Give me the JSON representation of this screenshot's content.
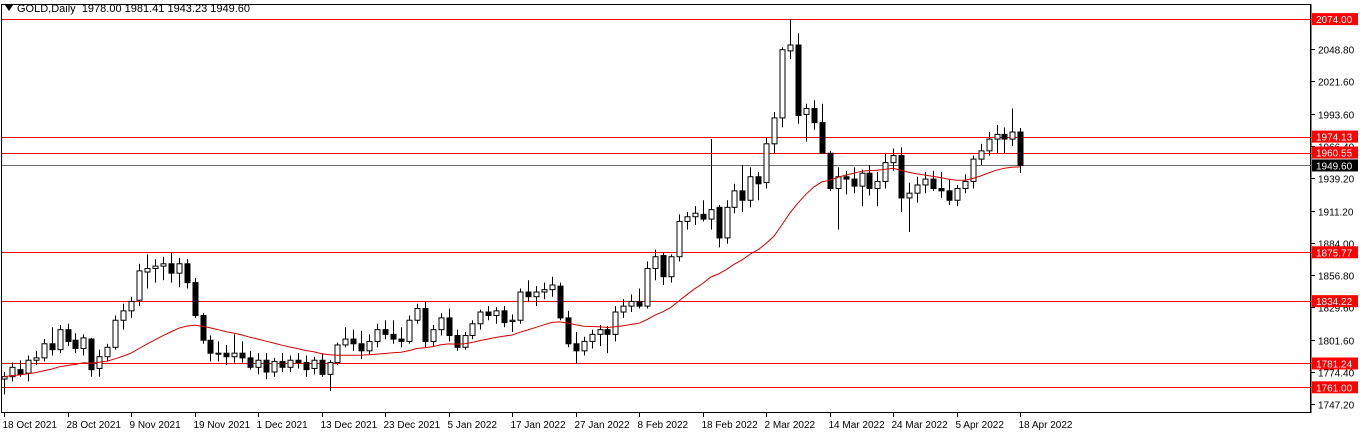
{
  "header": {
    "symbol": "GOLD,Daily",
    "ohlc": "1978.00 1981.41 1943.23 1949.60"
  },
  "colors": {
    "level_line": "#ff0000",
    "level_label_bg": "#ff0000",
    "current_price_bg": "#000000",
    "moving_average": "#d40000",
    "bull_body": "#ffffff",
    "bear_body": "#000000",
    "axis": "#000000"
  },
  "chart_data": {
    "type": "candlestick",
    "title": "GOLD,Daily",
    "ylim": [
      1740,
      2086
    ],
    "grid": false,
    "y_ticks": [
      "2048.80",
      "2021.60",
      "1993.60",
      "1966.40",
      "1939.20",
      "1911.20",
      "1884.00",
      "1856.80",
      "1829.60",
      "1801.60",
      "1774.40",
      "1747.20"
    ],
    "x_ticks": [
      "18 Oct 2021",
      "28 Oct 2021",
      "9 Nov 2021",
      "19 Nov 2021",
      "1 Dec 2021",
      "13 Dec 2021",
      "23 Dec 2021",
      "5 Jan 2022",
      "17 Jan 2022",
      "27 Jan 2022",
      "8 Feb 2022",
      "18 Feb 2022",
      "2 Mar 2022",
      "14 Mar 2022",
      "24 Mar 2022",
      "5 Apr 2022",
      "18 Apr 2022"
    ],
    "x_tick_bar_index": [
      0,
      8,
      16,
      24,
      32,
      40,
      48,
      56,
      64,
      72,
      80,
      88,
      96,
      104,
      112,
      120,
      128
    ],
    "levels": [
      {
        "label": "2074.00",
        "value": 2074.0
      },
      {
        "label": "1974.13",
        "value": 1974.13
      },
      {
        "label": "1960.55",
        "value": 1960.55
      },
      {
        "label": "1875.77",
        "value": 1875.77
      },
      {
        "label": "1834.22",
        "value": 1834.22
      },
      {
        "label": "1781.24",
        "value": 1781.24
      },
      {
        "label": "1761.00",
        "value": 1761.0
      }
    ],
    "current_price": {
      "label": "1949.60",
      "value": 1949.6
    },
    "series": [
      {
        "type": "ohlc",
        "values": [
          [
            1768,
            1774,
            1755,
            1770
          ],
          [
            1770,
            1782,
            1766,
            1778
          ],
          [
            1776,
            1784,
            1770,
            1772
          ],
          [
            1773,
            1788,
            1766,
            1784
          ],
          [
            1784,
            1792,
            1780,
            1786
          ],
          [
            1786,
            1802,
            1783,
            1798
          ],
          [
            1798,
            1812,
            1788,
            1793
          ],
          [
            1793,
            1814,
            1790,
            1810
          ],
          [
            1810,
            1815,
            1796,
            1800
          ],
          [
            1801,
            1807,
            1790,
            1794
          ],
          [
            1794,
            1806,
            1788,
            1803
          ],
          [
            1802,
            1803,
            1770,
            1776
          ],
          [
            1777,
            1793,
            1770,
            1787
          ],
          [
            1787,
            1798,
            1783,
            1795
          ],
          [
            1795,
            1822,
            1793,
            1818
          ],
          [
            1818,
            1832,
            1810,
            1826
          ],
          [
            1826,
            1838,
            1820,
            1834
          ],
          [
            1835,
            1866,
            1830,
            1860
          ],
          [
            1859,
            1874,
            1845,
            1862
          ],
          [
            1862,
            1870,
            1850,
            1864
          ],
          [
            1864,
            1872,
            1852,
            1866
          ],
          [
            1866,
            1876,
            1850,
            1858
          ],
          [
            1858,
            1871,
            1846,
            1866
          ],
          [
            1866,
            1870,
            1845,
            1850
          ],
          [
            1850,
            1854,
            1820,
            1822
          ],
          [
            1822,
            1824,
            1798,
            1801
          ],
          [
            1801,
            1805,
            1783,
            1790
          ],
          [
            1790,
            1800,
            1783,
            1790
          ],
          [
            1790,
            1797,
            1780,
            1787
          ],
          [
            1787,
            1806,
            1782,
            1790
          ],
          [
            1790,
            1800,
            1782,
            1786
          ],
          [
            1786,
            1792,
            1776,
            1778
          ],
          [
            1778,
            1790,
            1772,
            1784
          ],
          [
            1784,
            1790,
            1768,
            1774
          ],
          [
            1774,
            1786,
            1770,
            1783
          ],
          [
            1783,
            1790,
            1774,
            1778
          ],
          [
            1778,
            1788,
            1774,
            1784
          ],
          [
            1784,
            1790,
            1777,
            1782
          ],
          [
            1782,
            1788,
            1770,
            1776
          ],
          [
            1777,
            1787,
            1772,
            1784
          ],
          [
            1784,
            1790,
            1770,
            1772
          ],
          [
            1772,
            1784,
            1758,
            1782
          ],
          [
            1782,
            1799,
            1780,
            1797
          ],
          [
            1797,
            1812,
            1795,
            1802
          ],
          [
            1802,
            1810,
            1792,
            1798
          ],
          [
            1798,
            1809,
            1785,
            1792
          ],
          [
            1792,
            1806,
            1789,
            1800
          ],
          [
            1800,
            1815,
            1795,
            1810
          ],
          [
            1810,
            1818,
            1802,
            1806
          ],
          [
            1806,
            1818,
            1798,
            1802
          ],
          [
            1802,
            1812,
            1795,
            1800
          ],
          [
            1800,
            1822,
            1798,
            1818
          ],
          [
            1818,
            1832,
            1815,
            1828
          ],
          [
            1828,
            1834,
            1795,
            1800
          ],
          [
            1800,
            1814,
            1796,
            1810
          ],
          [
            1810,
            1824,
            1805,
            1820
          ],
          [
            1820,
            1828,
            1800,
            1805
          ],
          [
            1805,
            1810,
            1792,
            1795
          ],
          [
            1795,
            1808,
            1793,
            1805
          ],
          [
            1805,
            1818,
            1802,
            1815
          ],
          [
            1815,
            1827,
            1810,
            1825
          ],
          [
            1825,
            1830,
            1818,
            1822
          ],
          [
            1822,
            1829,
            1815,
            1826
          ],
          [
            1826,
            1830,
            1812,
            1816
          ],
          [
            1817,
            1823,
            1808,
            1818
          ],
          [
            1818,
            1845,
            1815,
            1842
          ],
          [
            1842,
            1852,
            1834,
            1838
          ],
          [
            1838,
            1847,
            1830,
            1842
          ],
          [
            1842,
            1850,
            1836,
            1844
          ],
          [
            1844,
            1855,
            1838,
            1848
          ],
          [
            1847,
            1850,
            1818,
            1820
          ],
          [
            1820,
            1826,
            1795,
            1798
          ],
          [
            1798,
            1808,
            1781,
            1792
          ],
          [
            1792,
            1804,
            1788,
            1800
          ],
          [
            1800,
            1810,
            1794,
            1806
          ],
          [
            1806,
            1814,
            1796,
            1810
          ],
          [
            1810,
            1813,
            1790,
            1806
          ],
          [
            1806,
            1830,
            1800,
            1825
          ],
          [
            1825,
            1836,
            1820,
            1830
          ],
          [
            1830,
            1840,
            1825,
            1834
          ],
          [
            1834,
            1845,
            1828,
            1830
          ],
          [
            1830,
            1868,
            1828,
            1862
          ],
          [
            1862,
            1878,
            1852,
            1872
          ],
          [
            1873,
            1876,
            1848,
            1855
          ],
          [
            1855,
            1874,
            1850,
            1872
          ],
          [
            1872,
            1908,
            1868,
            1902
          ],
          [
            1902,
            1910,
            1895,
            1906
          ],
          [
            1906,
            1915,
            1899,
            1909
          ],
          [
            1908,
            1920,
            1902,
            1904
          ],
          [
            1904,
            1972,
            1895,
            1912
          ],
          [
            1914,
            1916,
            1880,
            1888
          ],
          [
            1888,
            1920,
            1883,
            1914
          ],
          [
            1914,
            1934,
            1909,
            1928
          ],
          [
            1928,
            1950,
            1910,
            1920
          ],
          [
            1920,
            1948,
            1914,
            1940
          ],
          [
            1940,
            1944,
            1920,
            1934
          ],
          [
            1935,
            1973,
            1930,
            1968
          ],
          [
            1968,
            1995,
            1960,
            1990
          ],
          [
            1990,
            2050,
            1982,
            2048
          ],
          [
            2047,
            2074,
            2040,
            2052
          ],
          [
            2052,
            2062,
            1985,
            1992
          ],
          [
            1993,
            2002,
            1970,
            1998
          ],
          [
            1998,
            2005,
            1980,
            1986
          ],
          [
            1986,
            2002,
            1960,
            1960
          ],
          [
            1960,
            1962,
            1928,
            1930
          ],
          [
            1930,
            1948,
            1895,
            1940
          ],
          [
            1940,
            1945,
            1925,
            1938
          ],
          [
            1938,
            1948,
            1926,
            1932
          ],
          [
            1932,
            1946,
            1915,
            1943
          ],
          [
            1943,
            1950,
            1924,
            1930
          ],
          [
            1930,
            1944,
            1915,
            1936
          ],
          [
            1936,
            1960,
            1930,
            1952
          ],
          [
            1952,
            1964,
            1945,
            1958
          ],
          [
            1958,
            1965,
            1910,
            1922
          ],
          [
            1922,
            1935,
            1893,
            1926
          ],
          [
            1926,
            1940,
            1918,
            1933
          ],
          [
            1933,
            1944,
            1926,
            1938
          ],
          [
            1938,
            1945,
            1928,
            1930
          ],
          [
            1930,
            1944,
            1922,
            1928
          ],
          [
            1928,
            1938,
            1916,
            1920
          ],
          [
            1920,
            1933,
            1915,
            1930
          ],
          [
            1930,
            1942,
            1926,
            1936
          ],
          [
            1936,
            1958,
            1930,
            1955
          ],
          [
            1955,
            1968,
            1950,
            1962
          ],
          [
            1962,
            1978,
            1958,
            1972
          ],
          [
            1972,
            1984,
            1960,
            1976
          ],
          [
            1976,
            1982,
            1960,
            1972
          ],
          [
            1972,
            1998,
            1966,
            1978
          ],
          [
            1978,
            1981.41,
            1943.23,
            1949.6
          ]
        ]
      },
      {
        "name": "",
        "type": "line",
        "values": [
          1770,
          1771,
          1771.5,
          1772.5,
          1773.5,
          1775,
          1776.5,
          1778.5,
          1779.5,
          1780.5,
          1781.8,
          1781.5,
          1782.3,
          1783.3,
          1785.2,
          1787.5,
          1790,
          1794,
          1797.7,
          1801.3,
          1804.9,
          1808,
          1811.2,
          1813,
          1813.7,
          1812.9,
          1811.5,
          1810,
          1808.3,
          1807,
          1805.5,
          1803.5,
          1802,
          1800.2,
          1798.6,
          1796.8,
          1795.3,
          1793.9,
          1792.3,
          1791.2,
          1789.6,
          1788.6,
          1788.2,
          1788.2,
          1788.3,
          1788.4,
          1788.6,
          1789.2,
          1789.7,
          1790.3,
          1790.8,
          1792.2,
          1794,
          1794.6,
          1795.6,
          1797.1,
          1797.9,
          1797.7,
          1798.1,
          1799.2,
          1800.8,
          1802.1,
          1803.4,
          1804.5,
          1805.5,
          1807.8,
          1809.8,
          1812,
          1814.1,
          1816.2,
          1816.6,
          1815.6,
          1814.2,
          1812.9,
          1812.7,
          1812.4,
          1811.8,
          1812.4,
          1813.3,
          1814.5,
          1815.5,
          1818.6,
          1822.4,
          1825.3,
          1829,
          1834.4,
          1839.7,
          1844.8,
          1849.2,
          1854.7,
          1857.4,
          1861.2,
          1865.7,
          1869.5,
          1874.3,
          1878.1,
          1883.4,
          1889.7,
          1899.3,
          1909.4,
          1917.8,
          1925.1,
          1931.4,
          1935.6,
          1937.1,
          1939.4,
          1941.4,
          1942.9,
          1944.7,
          1945.3,
          1945.6,
          1946.3,
          1947.2,
          1945.4,
          1943.7,
          1942.4,
          1941.4,
          1940.3,
          1939.3,
          1937.8,
          1937.1,
          1937,
          1938.5,
          1940.6,
          1943.3,
          1945.6,
          1947.3,
          1948.2,
          1948.3
        ]
      }
    ]
  }
}
